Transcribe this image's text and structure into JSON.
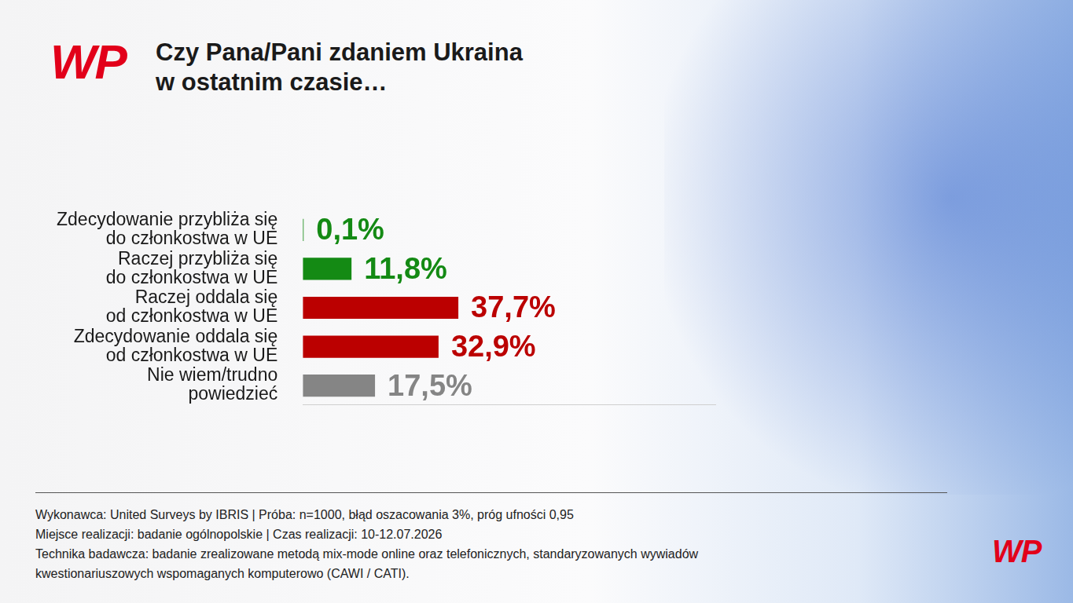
{
  "chart_data": {
    "type": "bar",
    "orientation": "horizontal",
    "title": "Czy Pana/Pani zdaniem Ukraina\nw ostatnim czasie…",
    "categories": [
      "Zdecydowanie przybliża się\ndo członkostwa w UE",
      "Raczej przybliża się\ndo członkostwa w UE",
      "Raczej oddala się\nod członkostwa w UE",
      "Zdecydowanie oddala się\nod członkostwa w UE",
      "Nie wiem/trudno\npowiedzieć"
    ],
    "values": [
      0.1,
      11.8,
      37.7,
      32.9,
      17.5
    ],
    "value_labels": [
      "0,1%",
      "11,8%",
      "37,7%",
      "32,9%",
      "17,5%"
    ],
    "colors": [
      "#148a14",
      "#148a14",
      "#bb0000",
      "#bb0000",
      "#858585"
    ],
    "xlim": [
      0,
      100
    ],
    "grid": false,
    "data_labels": true,
    "tick_labels": "y"
  },
  "logo": "WP",
  "footer": [
    "Wykonawca: United Surveys by IBRIS | Próba: n=1000, błąd oszacowania 3%, próg ufności 0,95",
    "Miejsce realizacji: badanie ogólnopolskie | Czas realizacji: 10-12.07.2026",
    "Technika badawcza: badanie zrealizowane metodą mix-mode online oraz telefonicznych, standaryzowanych wywiadów kwestionariuszowych wspomaganych komputerowo (CAWI / CATI)."
  ]
}
